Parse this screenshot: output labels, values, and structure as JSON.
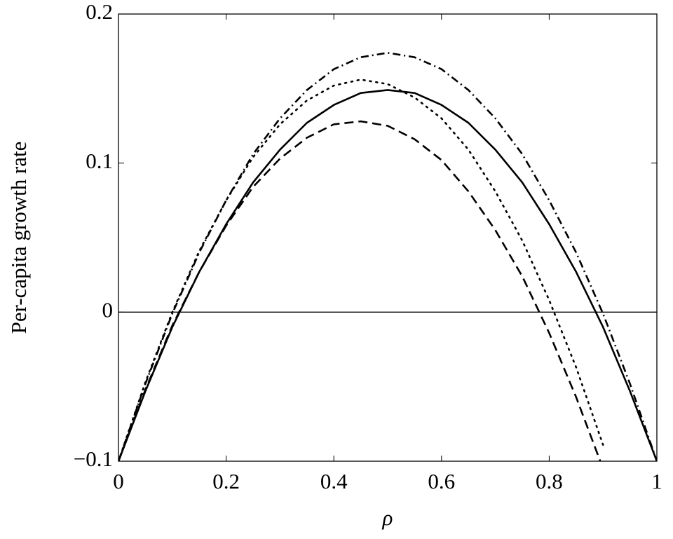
{
  "chart_data": {
    "type": "line",
    "xlabel": "ρ",
    "ylabel": "Per-capita growth rate",
    "x": [
      0,
      0.05,
      0.1,
      0.15,
      0.2,
      0.25,
      0.3,
      0.35,
      0.4,
      0.45,
      0.5,
      0.55,
      0.6,
      0.65,
      0.7,
      0.75,
      0.8,
      0.85,
      0.9,
      0.95,
      1
    ],
    "series": [
      {
        "color": "#000000",
        "dash": "solid",
        "values": [
          -0.1,
          -0.053,
          -0.01,
          0.027,
          0.059,
          0.087,
          0.109,
          0.127,
          0.139,
          0.147,
          0.149,
          0.147,
          0.139,
          0.127,
          0.109,
          0.087,
          0.059,
          0.027,
          -0.01,
          -0.053,
          -0.1
        ]
      },
      {
        "color": "#000000",
        "dash": "dashed",
        "values": [
          -0.1,
          -0.052,
          -0.009,
          0.027,
          0.058,
          0.084,
          0.103,
          0.117,
          0.126,
          0.128,
          0.125,
          0.116,
          0.102,
          0.081,
          0.055,
          0.024,
          -0.014,
          -0.057,
          -0.105,
          null,
          null
        ]
      },
      {
        "color": "#000000",
        "dash": "dotted",
        "values": [
          -0.1,
          -0.047,
          0.0,
          0.041,
          0.075,
          0.104,
          0.126,
          0.142,
          0.152,
          0.156,
          0.153,
          0.144,
          0.13,
          0.109,
          0.081,
          0.048,
          0.008,
          -0.037,
          -0.089,
          null,
          null
        ]
      },
      {
        "color": "#000000",
        "dash": "dashdot",
        "values": [
          -0.1,
          -0.048,
          -0.001,
          0.04,
          0.075,
          0.106,
          0.13,
          0.149,
          0.163,
          0.171,
          0.174,
          0.171,
          0.163,
          0.149,
          0.13,
          0.106,
          0.075,
          0.04,
          -0.001,
          -0.048,
          -0.1
        ]
      }
    ],
    "xlim": [
      0,
      1
    ],
    "xticks": [
      0,
      0.2,
      0.4,
      0.6,
      0.8,
      1
    ],
    "ylim": [
      -0.1,
      0.2
    ],
    "yticks": [
      {
        "value": -0.1,
        "label": "−0.1"
      },
      0,
      0.1,
      0.2
    ],
    "hline": 0,
    "grid": false
  }
}
